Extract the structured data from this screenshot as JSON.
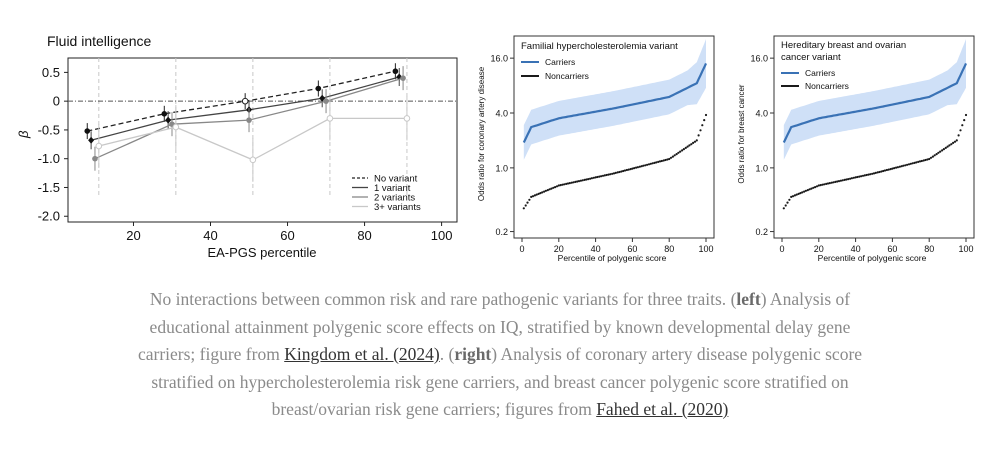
{
  "colors": {
    "carriers": "#3a72b5",
    "band": "#cfe0f7",
    "noncarriers": "#1a1a1a",
    "caption": "#8a8a8a",
    "link": "#333333"
  },
  "chart_data": [
    {
      "type": "line",
      "title": "Fluid intelligence",
      "xlabel": "EA-PGS percentile",
      "ylabel": "β",
      "xlim": [
        3,
        104
      ],
      "ylim": [
        -2.1,
        0.75
      ],
      "xticks": [
        "20",
        "40",
        "60",
        "80",
        "100"
      ],
      "yticks": [
        "0.5",
        "0",
        "-0.5",
        "-1.0",
        "-1.5",
        "-2.0"
      ],
      "legend_position": "bottom-right",
      "series": [
        {
          "name": "No variant",
          "x": [
            8,
            28,
            49,
            68,
            88
          ],
          "y": [
            -0.52,
            -0.22,
            0.0,
            0.22,
            0.52
          ]
        },
        {
          "name": "1 variant",
          "x": [
            9,
            29,
            50,
            69,
            89
          ],
          "y": [
            -0.68,
            -0.33,
            -0.15,
            0.05,
            0.42
          ]
        },
        {
          "name": "2 variants",
          "x": [
            10,
            30,
            50,
            70,
            90
          ],
          "y": [
            -1.0,
            -0.4,
            -0.33,
            0.0,
            0.4
          ]
        },
        {
          "name": "3+ variants",
          "x": [
            11,
            31,
            51,
            71,
            91
          ],
          "y": [
            -0.78,
            -0.45,
            -1.02,
            -0.3,
            -0.3
          ]
        }
      ],
      "vlines": [
        11,
        31,
        51,
        71,
        91
      ]
    },
    {
      "type": "line",
      "title": "Familial hypercholesterolemia variant",
      "xlabel": "Percentile of polygenic score",
      "ylabel": "Odds ratio for coronary artery disease",
      "xticks": [
        "0",
        "20",
        "40",
        "60",
        "80",
        "100"
      ],
      "yticks": [
        "16.0",
        "4.0",
        "1.0",
        "0.2"
      ],
      "y_scale": "log",
      "series": [
        {
          "name": "Carriers",
          "x": [
            1,
            5,
            20,
            50,
            80,
            95,
            100
          ],
          "y": [
            1.9,
            2.8,
            3.5,
            4.5,
            6.0,
            8.5,
            14.0
          ]
        },
        {
          "name": "Noncarriers",
          "x": [
            1,
            5,
            20,
            50,
            80,
            95,
            100
          ],
          "y": [
            0.36,
            0.48,
            0.64,
            0.87,
            1.25,
            2.0,
            3.8
          ]
        }
      ]
    },
    {
      "type": "line",
      "title": "Hereditary breast and ovarian cancer variant",
      "xlabel": "Percentile of polygenic score",
      "ylabel": "Odds ratio for breast cancer",
      "xticks": [
        "0",
        "20",
        "40",
        "60",
        "80",
        "100"
      ],
      "yticks": [
        "16.0",
        "4.0",
        "1.0",
        "0.2"
      ],
      "y_scale": "log",
      "series": [
        {
          "name": "Carriers",
          "x": [
            1,
            5,
            20,
            50,
            80,
            95,
            100
          ],
          "y": [
            1.9,
            2.8,
            3.5,
            4.5,
            6.0,
            8.5,
            14.0
          ]
        },
        {
          "name": "Noncarriers",
          "x": [
            1,
            5,
            20,
            50,
            80,
            95,
            100
          ],
          "y": [
            0.36,
            0.48,
            0.64,
            0.87,
            1.25,
            2.0,
            3.8
          ]
        }
      ]
    }
  ],
  "caption": {
    "line1": "No interactions between common risk and rare pathogenic variants for three traits.",
    "left_open": "(",
    "left_bold": "left",
    "left_text": ") Analysis of educational attainment polygenic score effects on IQ, stratified by known developmental delay gene carriers; figure from ",
    "link1": "Kingdom et al. (2024)",
    "right_open": ". (",
    "right_bold": "right",
    "right_close": ")",
    "right_text": " Analysis of coronary artery disease polygenic score stratified on hypercholesterolemia risk gene carriers, and breast cancer polygenic score stratified on breast/ovarian risk gene carriers; figures from ",
    "link2": "Fahed et al. (2020)"
  }
}
